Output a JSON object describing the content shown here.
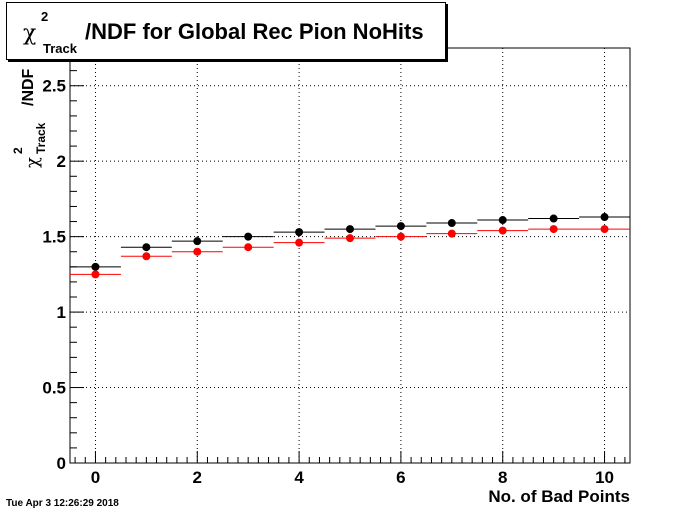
{
  "title": {
    "chi": "χ",
    "sup": "2",
    "sub": "Track",
    "rest": "/NDF for Global Rec Pion NoHits"
  },
  "y_axis": {
    "chi": "χ",
    "sup": "2",
    "sub": "Track",
    "rest": "/NDF"
  },
  "x_axis_label": "No. of Bad Points",
  "timestamp": "Tue Apr  3 12:26:29 2018",
  "colors": {
    "series1": "#000000",
    "series2": "#ff0000"
  },
  "chart_data": {
    "type": "scatter",
    "title": "χ²Track/NDF for Global Rec Pion NoHits",
    "xlabel": "No. of Bad Points",
    "ylabel": "χ²Track/NDF",
    "xlim": [
      -0.5,
      10.5
    ],
    "ylim": [
      0,
      2.75
    ],
    "grid": true,
    "x_ticks": [
      "0",
      "2",
      "4",
      "6",
      "8",
      "10"
    ],
    "y_ticks": [
      "0",
      "0.5",
      "1",
      "1.5",
      "2",
      "2.5"
    ],
    "x": [
      0,
      1,
      2,
      3,
      4,
      5,
      6,
      7,
      8,
      9,
      10
    ],
    "series": [
      {
        "values": [
          1.3,
          1.43,
          1.47,
          1.5,
          1.53,
          1.55,
          1.57,
          1.59,
          1.61,
          1.62,
          1.63
        ]
      },
      {
        "values": [
          1.25,
          1.37,
          1.4,
          1.43,
          1.46,
          1.49,
          1.5,
          1.52,
          1.54,
          1.55,
          1.55
        ]
      }
    ]
  }
}
